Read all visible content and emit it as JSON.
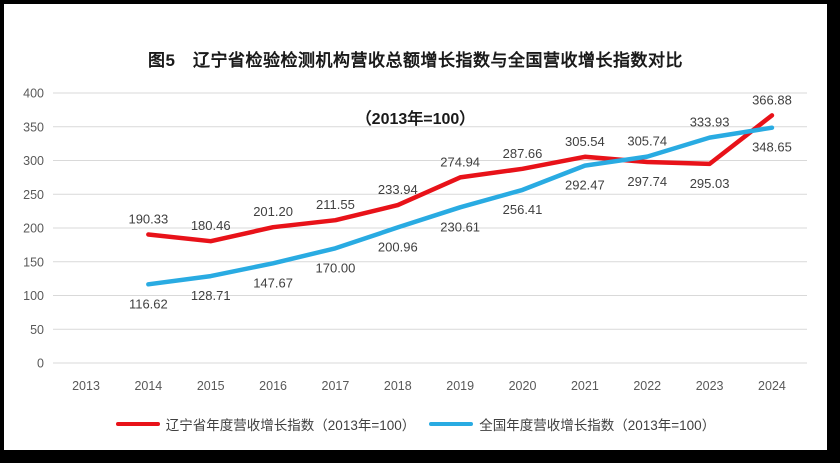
{
  "title": {
    "line1": "图5　辽宁省检验检测机构营收总额增长指数与全国营收增长指数对比",
    "line2": "（2013年=100）"
  },
  "colors": {
    "liaoning_red": "#e81219",
    "national_blue": "#29abe2",
    "grid": "#d9d9d9",
    "axis_text": "#595959",
    "data_label": "#404040",
    "frame_border": "#000000"
  },
  "chart_data": {
    "type": "line",
    "categories": [
      "2013",
      "2014",
      "2015",
      "2016",
      "2017",
      "2018",
      "2019",
      "2020",
      "2021",
      "2022",
      "2023",
      "2024"
    ],
    "series": [
      {
        "id": "liaoning",
        "name": "辽宁省年度营收增长指数（2013年=100）",
        "color_key": "liaoning_red",
        "values": [
          null,
          190.33,
          180.46,
          201.2,
          211.55,
          233.94,
          274.94,
          287.66,
          305.54,
          297.74,
          295.03,
          366.88
        ],
        "label_side": [
          null,
          "above",
          "above",
          "above",
          "above",
          "above",
          "above",
          "above",
          "above",
          "below",
          "below",
          "above"
        ]
      },
      {
        "id": "national",
        "name": "全国年度营收增长指数（2013年=100）",
        "color_key": "national_blue",
        "values": [
          null,
          116.62,
          128.71,
          147.67,
          170.0,
          200.96,
          230.61,
          256.41,
          292.47,
          305.74,
          333.93,
          348.65
        ],
        "label_side": [
          null,
          "below",
          "below",
          "below",
          "below",
          "below",
          "below",
          "below",
          "below",
          "above",
          "above",
          "below"
        ]
      }
    ],
    "ylim": [
      0,
      400
    ],
    "ytick_step": 50,
    "grid": true,
    "legend_position": "bottom",
    "xlabel": "",
    "ylabel": "",
    "value_decimals": 2
  }
}
